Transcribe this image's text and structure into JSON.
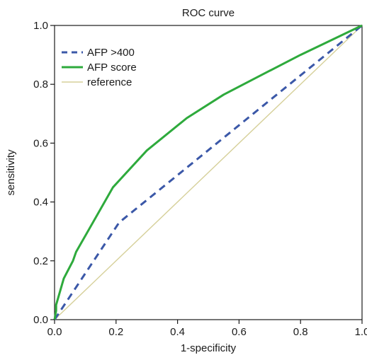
{
  "chart_data": {
    "type": "line",
    "title": "ROC curve",
    "xlabel": "1-specificity",
    "ylabel": "sensitivity",
    "xlim": [
      0,
      1
    ],
    "ylim": [
      0,
      1
    ],
    "x_ticks": [
      "0.0",
      "0.2",
      "0.4",
      "0.6",
      "0.8",
      "1.0"
    ],
    "y_ticks": [
      "0.0",
      "0.2",
      "0.4",
      "0.6",
      "0.8",
      "1.0"
    ],
    "grid": false,
    "legend_position": "top-left",
    "series": [
      {
        "name": "AFP >400",
        "color": "#3b58a8",
        "style": "dashed",
        "x": [
          0.0,
          0.21,
          1.0
        ],
        "y": [
          0.0,
          0.33,
          1.0
        ]
      },
      {
        "name": "AFP score",
        "color": "#2eaa3c",
        "style": "solid",
        "x": [
          0.0,
          0.005,
          0.005,
          0.03,
          0.06,
          0.07,
          0.19,
          0.3,
          0.43,
          0.55,
          0.67,
          0.8,
          1.0
        ],
        "y": [
          0.0,
          0.03,
          0.05,
          0.14,
          0.2,
          0.23,
          0.45,
          0.575,
          0.685,
          0.765,
          0.83,
          0.9,
          1.0
        ]
      },
      {
        "name": "reference",
        "color": "#d6d09a",
        "style": "solid",
        "x": [
          0.0,
          1.0
        ],
        "y": [
          0.0,
          1.0
        ]
      }
    ]
  }
}
